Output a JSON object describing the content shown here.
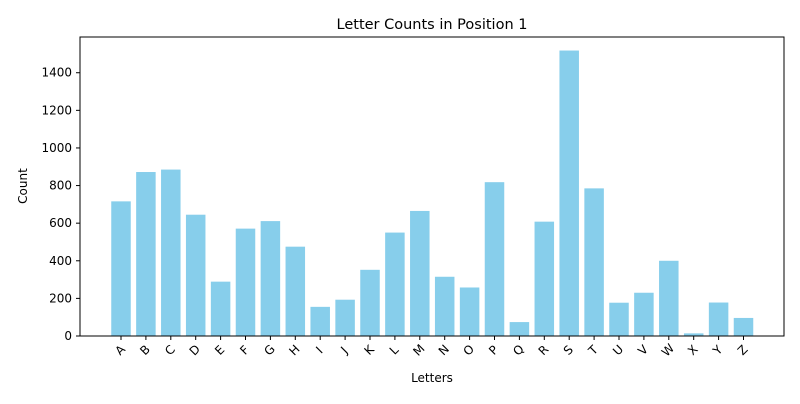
{
  "chart_data": {
    "type": "bar",
    "title": "Letter Counts in Position 1",
    "xlabel": "Letters",
    "ylabel": "Count",
    "categories": [
      "A",
      "B",
      "C",
      "D",
      "E",
      "F",
      "G",
      "H",
      "I",
      "J",
      "K",
      "L",
      "M",
      "N",
      "O",
      "P",
      "Q",
      "R",
      "S",
      "T",
      "U",
      "V",
      "W",
      "X",
      "Y",
      "Z"
    ],
    "values": [
      716,
      872,
      885,
      645,
      289,
      571,
      611,
      475,
      155,
      193,
      352,
      550,
      665,
      315,
      258,
      818,
      74,
      608,
      1518,
      785,
      177,
      230,
      400,
      14,
      178,
      96
    ],
    "ylim": [
      0,
      1590
    ],
    "yticks": [
      0,
      200,
      400,
      600,
      800,
      1000,
      1200,
      1400
    ],
    "bar_color": "#87CEEB",
    "grid": false
  }
}
